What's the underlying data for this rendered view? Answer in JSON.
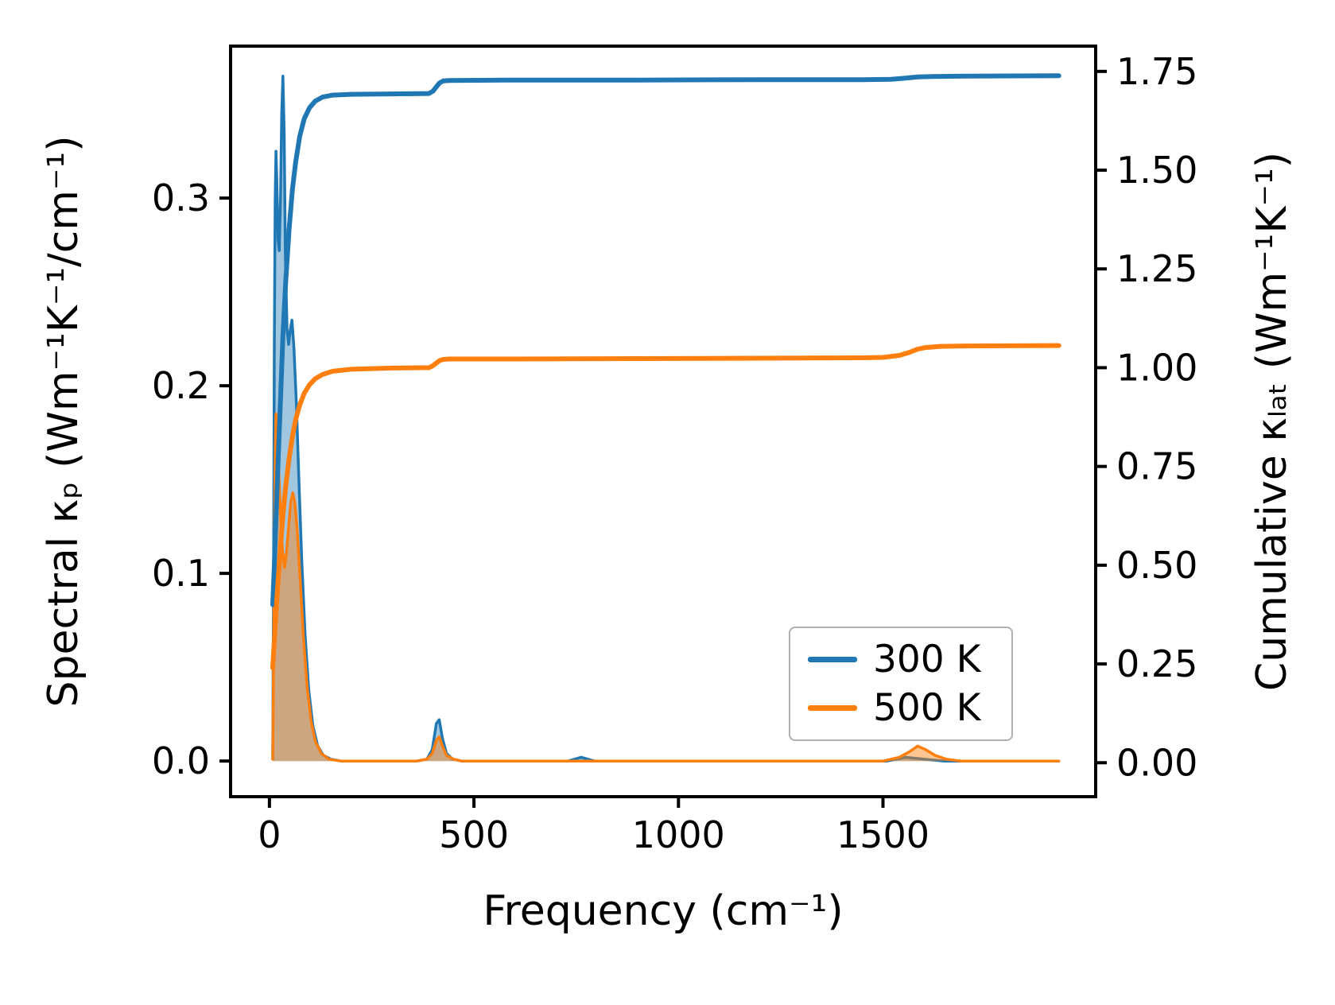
{
  "chart_data": {
    "type": "line",
    "title": "",
    "xlabel": "Frequency (cm⁻¹)",
    "ylabel_left": "Spectral κₚ (Wm⁻¹K⁻¹/cm⁻¹)",
    "ylabel_right": "Cumulative κₗₐₜ (Wm⁻¹K⁻¹)",
    "xlim": [
      -95,
      2020
    ],
    "ylim_left": [
      -0.019,
      0.381
    ],
    "ylim_right": [
      -0.086,
      1.814
    ],
    "grid": false,
    "xticks": {
      "values": [
        0,
        500,
        1000,
        1500
      ],
      "labels": [
        "0",
        "500",
        "1000",
        "1500"
      ]
    },
    "yticks_left": {
      "values": [
        0.0,
        0.1,
        0.2,
        0.3
      ],
      "labels": [
        "0.0",
        "0.1",
        "0.2",
        "0.3"
      ]
    },
    "yticks_right": {
      "values": [
        0.0,
        0.25,
        0.5,
        0.75,
        1.0,
        1.25,
        1.5,
        1.75
      ],
      "labels": [
        "0.00",
        "0.25",
        "0.50",
        "0.75",
        "1.00",
        "1.25",
        "1.50",
        "1.75"
      ]
    },
    "colors": {
      "blue": "#1f77b4",
      "orange": "#ff7f0e"
    },
    "legend": {
      "position": "lower right",
      "entries": [
        {
          "label": "300 K",
          "color": "#1f77b4"
        },
        {
          "label": "500 K",
          "color": "#ff7f0e"
        }
      ]
    },
    "series": [
      {
        "name": "spectral-300K",
        "axis": "left",
        "kind": "area",
        "color": "#1f77b4",
        "fill": true,
        "fill_alpha": 0.42,
        "width": 3.5,
        "points": [
          [
            8,
            0.001
          ],
          [
            10,
            0.09
          ],
          [
            12,
            0.22
          ],
          [
            14,
            0.3
          ],
          [
            16,
            0.325
          ],
          [
            18,
            0.31
          ],
          [
            21,
            0.278
          ],
          [
            24,
            0.272
          ],
          [
            27,
            0.3
          ],
          [
            30,
            0.345
          ],
          [
            33,
            0.365
          ],
          [
            36,
            0.335
          ],
          [
            39,
            0.27
          ],
          [
            43,
            0.23
          ],
          [
            47,
            0.222
          ],
          [
            51,
            0.23
          ],
          [
            55,
            0.235
          ],
          [
            60,
            0.22
          ],
          [
            66,
            0.19
          ],
          [
            72,
            0.15
          ],
          [
            79,
            0.107
          ],
          [
            87,
            0.068
          ],
          [
            96,
            0.038
          ],
          [
            106,
            0.019
          ],
          [
            118,
            0.008
          ],
          [
            132,
            0.003
          ],
          [
            150,
            0.001
          ],
          [
            175,
            0.0
          ],
          [
            360,
            0.0
          ],
          [
            385,
            0.001
          ],
          [
            398,
            0.006
          ],
          [
            408,
            0.02
          ],
          [
            415,
            0.022
          ],
          [
            423,
            0.012
          ],
          [
            433,
            0.004
          ],
          [
            448,
            0.001
          ],
          [
            470,
            0.0
          ],
          [
            730,
            0.0
          ],
          [
            762,
            0.002
          ],
          [
            795,
            0.0
          ],
          [
            1510,
            0.0
          ],
          [
            1555,
            0.002
          ],
          [
            1600,
            0.001
          ],
          [
            1650,
            0.0
          ],
          [
            1930,
            0.0
          ]
        ]
      },
      {
        "name": "spectral-500K",
        "axis": "left",
        "kind": "area",
        "color": "#ff7f0e",
        "fill": true,
        "fill_alpha": 0.45,
        "width": 3.5,
        "points": [
          [
            8,
            0.001
          ],
          [
            10,
            0.05
          ],
          [
            12,
            0.11
          ],
          [
            14,
            0.16
          ],
          [
            16,
            0.185
          ],
          [
            18,
            0.178
          ],
          [
            22,
            0.158
          ],
          [
            27,
            0.132
          ],
          [
            32,
            0.112
          ],
          [
            37,
            0.103
          ],
          [
            42,
            0.112
          ],
          [
            47,
            0.125
          ],
          [
            52,
            0.138
          ],
          [
            57,
            0.143
          ],
          [
            62,
            0.138
          ],
          [
            68,
            0.122
          ],
          [
            75,
            0.097
          ],
          [
            83,
            0.066
          ],
          [
            92,
            0.04
          ],
          [
            102,
            0.021
          ],
          [
            113,
            0.01
          ],
          [
            127,
            0.004
          ],
          [
            145,
            0.001
          ],
          [
            175,
            0.0
          ],
          [
            360,
            0.0
          ],
          [
            385,
            0.001
          ],
          [
            398,
            0.004
          ],
          [
            408,
            0.011
          ],
          [
            415,
            0.013
          ],
          [
            423,
            0.008
          ],
          [
            433,
            0.003
          ],
          [
            450,
            0.001
          ],
          [
            470,
            0.0
          ],
          [
            1500,
            0.0
          ],
          [
            1540,
            0.002
          ],
          [
            1565,
            0.005
          ],
          [
            1585,
            0.008
          ],
          [
            1605,
            0.006
          ],
          [
            1628,
            0.003
          ],
          [
            1655,
            0.001
          ],
          [
            1690,
            0.0
          ],
          [
            1930,
            0.0
          ]
        ]
      },
      {
        "name": "cumulative-300K",
        "axis": "right",
        "kind": "line",
        "color": "#1f77b4",
        "fill": false,
        "fill_alpha": 0,
        "width": 6,
        "points": [
          [
            8,
            0.4
          ],
          [
            12,
            0.5
          ],
          [
            16,
            0.62
          ],
          [
            21,
            0.76
          ],
          [
            27,
            0.92
          ],
          [
            33,
            1.08
          ],
          [
            40,
            1.22
          ],
          [
            48,
            1.35
          ],
          [
            56,
            1.45
          ],
          [
            64,
            1.52
          ],
          [
            74,
            1.585
          ],
          [
            85,
            1.63
          ],
          [
            98,
            1.658
          ],
          [
            112,
            1.675
          ],
          [
            130,
            1.685
          ],
          [
            155,
            1.69
          ],
          [
            200,
            1.692
          ],
          [
            300,
            1.693
          ],
          [
            390,
            1.694
          ],
          [
            400,
            1.7
          ],
          [
            408,
            1.711
          ],
          [
            416,
            1.721
          ],
          [
            425,
            1.726
          ],
          [
            440,
            1.727
          ],
          [
            600,
            1.728
          ],
          [
            900,
            1.728
          ],
          [
            1200,
            1.729
          ],
          [
            1450,
            1.729
          ],
          [
            1520,
            1.73
          ],
          [
            1555,
            1.733
          ],
          [
            1585,
            1.736
          ],
          [
            1620,
            1.737
          ],
          [
            1700,
            1.738
          ],
          [
            1930,
            1.739
          ]
        ]
      },
      {
        "name": "cumulative-500K",
        "axis": "right",
        "kind": "line",
        "color": "#ff7f0e",
        "fill": false,
        "fill_alpha": 0,
        "width": 6,
        "points": [
          [
            8,
            0.24
          ],
          [
            12,
            0.31
          ],
          [
            16,
            0.38
          ],
          [
            21,
            0.46
          ],
          [
            27,
            0.545
          ],
          [
            33,
            0.625
          ],
          [
            40,
            0.7
          ],
          [
            48,
            0.77
          ],
          [
            56,
            0.825
          ],
          [
            64,
            0.868
          ],
          [
            74,
            0.905
          ],
          [
            85,
            0.935
          ],
          [
            98,
            0.957
          ],
          [
            112,
            0.972
          ],
          [
            130,
            0.983
          ],
          [
            155,
            0.991
          ],
          [
            200,
            0.996
          ],
          [
            300,
            0.999
          ],
          [
            390,
            1.0
          ],
          [
            400,
            1.005
          ],
          [
            408,
            1.012
          ],
          [
            416,
            1.018
          ],
          [
            425,
            1.021
          ],
          [
            440,
            1.022
          ],
          [
            600,
            1.022
          ],
          [
            900,
            1.023
          ],
          [
            1200,
            1.024
          ],
          [
            1450,
            1.025
          ],
          [
            1500,
            1.026
          ],
          [
            1540,
            1.031
          ],
          [
            1565,
            1.039
          ],
          [
            1585,
            1.047
          ],
          [
            1605,
            1.051
          ],
          [
            1640,
            1.054
          ],
          [
            1700,
            1.055
          ],
          [
            1930,
            1.056
          ]
        ]
      }
    ]
  }
}
